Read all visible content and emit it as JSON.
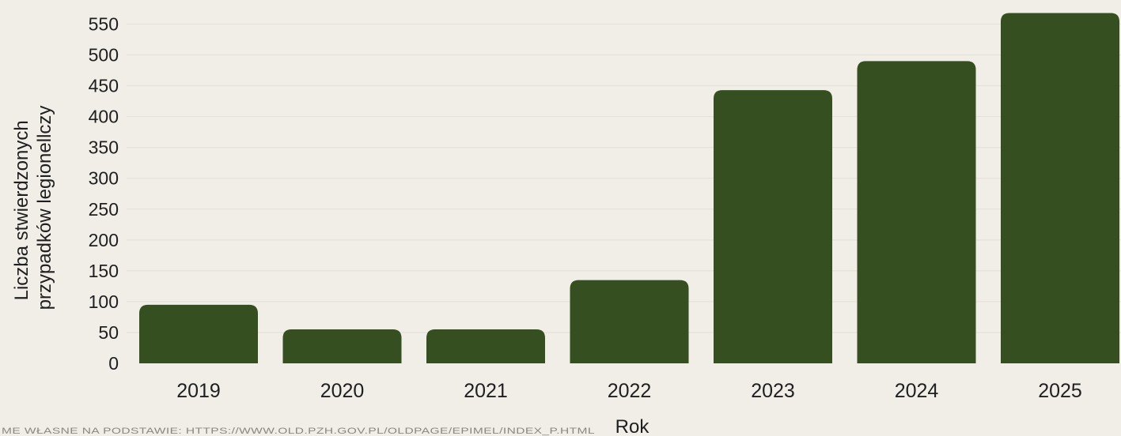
{
  "chart_data": {
    "type": "bar",
    "categories": [
      "2019",
      "2020",
      "2021",
      "2022",
      "2023",
      "2024",
      "2025"
    ],
    "values": [
      95,
      55,
      55,
      135,
      443,
      490,
      568
    ],
    "xlabel": "Rok",
    "ylabel_lines": [
      "Liczba stwierdzonych",
      "przypadków legionellczy"
    ],
    "ylim": [
      0,
      575
    ],
    "yticks": [
      0,
      50,
      100,
      150,
      200,
      250,
      300,
      350,
      400,
      450,
      500,
      550
    ],
    "grid": true,
    "legend": "none",
    "bar_color": "#354f20",
    "source_note": "ME WŁASNE NA PODSTAWIE: HTTPS://WWW.OLD.PZH.GOV.PL/OLDPAGE/EPIMEL/INDEX_P.HTML"
  }
}
